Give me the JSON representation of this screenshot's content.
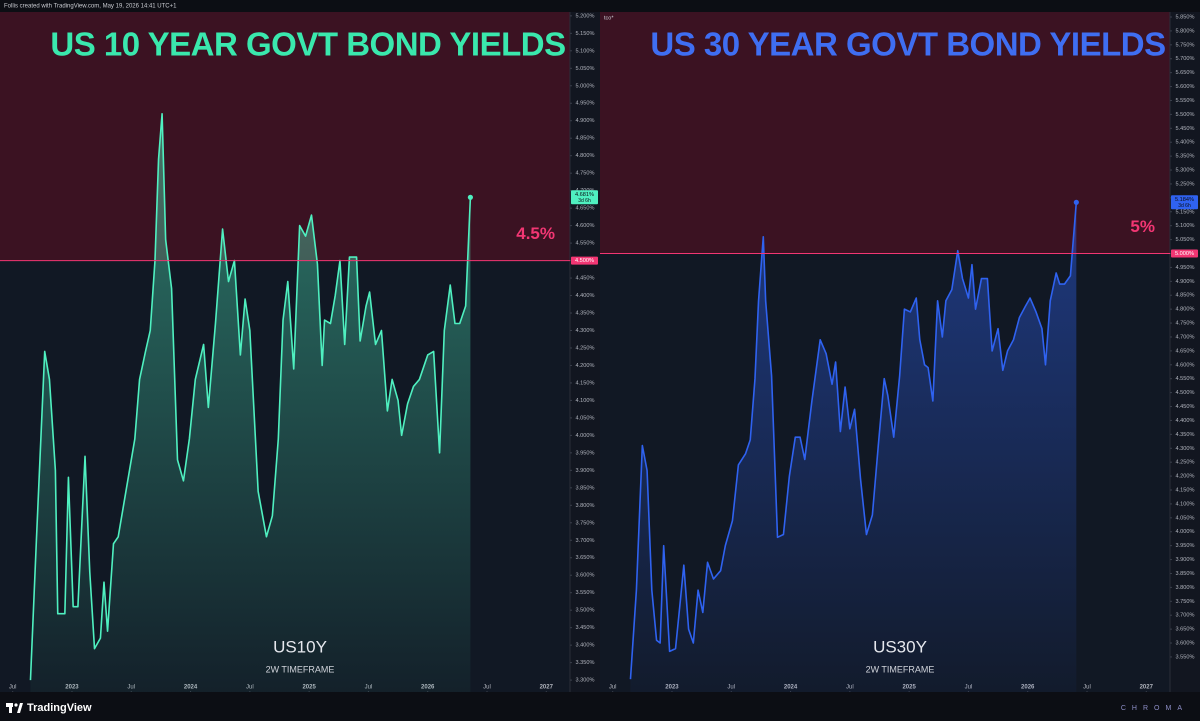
{
  "header": {
    "text": "Follis created with TradingView.com, May 19, 2026 14:41 UTC+1"
  },
  "footer": {
    "brand": "TradingView",
    "signature": "CHROMA"
  },
  "chart_data": [
    {
      "type": "line",
      "title": "US 10 YEAR GOVT BOND YIELDS",
      "title_color": "#3ae8ad",
      "annotation": "4.5%",
      "timeframe": "2W TIMEFRAME",
      "countdown": "3d 6h",
      "x": [
        2022.65,
        2022.7,
        2022.77,
        2022.81,
        2022.86,
        2022.88,
        2022.94,
        2022.97,
        2023.01,
        2023.05,
        2023.11,
        2023.15,
        2023.19,
        2023.24,
        2023.27,
        2023.3,
        2023.35,
        2023.39,
        2023.45,
        2023.53,
        2023.57,
        2023.62,
        2023.66,
        2023.7,
        2023.73,
        2023.76,
        2023.79,
        2023.84,
        2023.89,
        2023.94,
        2023.99,
        2024.04,
        2024.11,
        2024.15,
        2024.21,
        2024.27,
        2024.32,
        2024.37,
        2024.42,
        2024.46,
        2024.5,
        2024.57,
        2024.64,
        2024.69,
        2024.74,
        2024.78,
        2024.82,
        2024.87,
        2024.92,
        2024.97,
        2025.02,
        2025.07,
        2025.11,
        2025.13,
        2025.18,
        2025.22,
        2025.26,
        2025.3,
        2025.34,
        2025.4,
        2025.43,
        2025.48,
        2025.51,
        2025.56,
        2025.61,
        2025.66,
        2025.7,
        2025.75,
        2025.78,
        2025.83,
        2025.88,
        2025.93,
        2026.0,
        2026.05,
        2026.1,
        2026.14,
        2026.19,
        2026.23,
        2026.27,
        2026.32,
        2026.36
      ],
      "series": [
        {
          "name": "US10Y",
          "color": "#4ff0c0",
          "values": [
            3.3,
            3.7,
            4.24,
            4.16,
            3.9,
            3.49,
            3.49,
            3.88,
            3.51,
            3.51,
            3.94,
            3.61,
            3.39,
            3.42,
            3.58,
            3.44,
            3.69,
            3.71,
            3.83,
            3.99,
            4.16,
            4.24,
            4.3,
            4.5,
            4.79,
            4.92,
            4.56,
            4.42,
            3.93,
            3.87,
            3.99,
            4.16,
            4.26,
            4.08,
            4.32,
            4.59,
            4.44,
            4.5,
            4.23,
            4.39,
            4.3,
            3.84,
            3.71,
            3.77,
            3.99,
            4.33,
            4.44,
            4.19,
            4.6,
            4.57,
            4.63,
            4.49,
            4.2,
            4.33,
            4.32,
            4.4,
            4.5,
            4.26,
            4.51,
            4.51,
            4.27,
            4.37,
            4.41,
            4.26,
            4.3,
            4.07,
            4.16,
            4.1,
            4.0,
            4.09,
            4.14,
            4.16,
            4.23,
            4.24,
            3.95,
            4.3,
            4.43,
            4.32,
            4.32,
            4.37,
            4.681
          ]
        }
      ],
      "price_label": {
        "value": 4.681,
        "label": "4.681%"
      },
      "threshold": {
        "value": 4.5,
        "label": "4.500%",
        "color": "#f23673"
      },
      "xlim": [
        2022.393,
        2027.2
      ],
      "xticks": [
        {
          "value": 2022.5,
          "label": "Jul"
        },
        2023,
        {
          "value": 2023.5,
          "label": "Jul"
        },
        2024,
        {
          "value": 2024.5,
          "label": "Jul"
        },
        2025,
        {
          "value": 2025.5,
          "label": "Jul"
        },
        2026,
        {
          "value": 2026.5,
          "label": "Jul"
        },
        2027
      ],
      "ylim": [
        3.266,
        5.211
      ],
      "yticks": [
        {
          "value": 3.3,
          "label": "3.300%"
        },
        {
          "value": 3.35,
          "label": "3.350%"
        },
        {
          "value": 3.4,
          "label": "3.400%"
        },
        {
          "value": 3.45,
          "label": "3.450%"
        },
        {
          "value": 3.5,
          "label": "3.500%"
        },
        {
          "value": 3.55,
          "label": "3.550%"
        },
        {
          "value": 3.6,
          "label": "3.600%"
        },
        {
          "value": 3.65,
          "label": "3.650%"
        },
        {
          "value": 3.7,
          "label": "3.700%"
        },
        {
          "value": 3.75,
          "label": "3.750%"
        },
        {
          "value": 3.8,
          "label": "3.800%"
        },
        {
          "value": 3.85,
          "label": "3.850%"
        },
        {
          "value": 3.9,
          "label": "3.900%"
        },
        {
          "value": 3.95,
          "label": "3.950%"
        },
        {
          "value": 4.0,
          "label": "4.000%"
        },
        {
          "value": 4.05,
          "label": "4.050%"
        },
        {
          "value": 4.1,
          "label": "4.100%"
        },
        {
          "value": 4.15,
          "label": "4.150%"
        },
        {
          "value": 4.2,
          "label": "4.200%"
        },
        {
          "value": 4.25,
          "label": "4.250%"
        },
        {
          "value": 4.3,
          "label": "4.300%"
        },
        {
          "value": 4.35,
          "label": "4.350%"
        },
        {
          "value": 4.4,
          "label": "4.400%"
        },
        {
          "value": 4.45,
          "label": "4.450%"
        },
        {
          "value": 4.5,
          "label": "4.500%"
        },
        {
          "value": 4.55,
          "label": "4.550%"
        },
        {
          "value": 4.6,
          "label": "4.600%"
        },
        {
          "value": 4.65,
          "label": "4.650%"
        },
        {
          "value": 4.7,
          "label": "4.700%"
        },
        {
          "value": 4.75,
          "label": "4.750%"
        },
        {
          "value": 4.8,
          "label": "4.800%"
        },
        {
          "value": 4.85,
          "label": "4.850%"
        },
        {
          "value": 4.9,
          "label": "4.900%"
        },
        {
          "value": 4.95,
          "label": "4.950%"
        },
        {
          "value": 5.0,
          "label": "5.000%"
        },
        {
          "value": 5.05,
          "label": "5.050%"
        },
        {
          "value": 5.1,
          "label": "5.100%"
        },
        {
          "value": 5.15,
          "label": "5.150%"
        },
        {
          "value": 5.2,
          "label": "5.200%"
        }
      ]
    },
    {
      "type": "line",
      "title": "US 30 YEAR GOVT BOND YIELDS",
      "title_color": "#3f6ef2",
      "annotation": "5%",
      "timeframe": "2W TIMEFRAME",
      "countdown": "3d 6h",
      "tag": "tco*",
      "x": [
        2022.65,
        2022.7,
        2022.75,
        2022.79,
        2022.83,
        2022.87,
        2022.9,
        2022.93,
        2022.98,
        2023.03,
        2023.07,
        2023.1,
        2023.14,
        2023.18,
        2023.22,
        2023.26,
        2023.3,
        2023.35,
        2023.41,
        2023.45,
        2023.51,
        2023.56,
        2023.62,
        2023.66,
        2023.7,
        2023.73,
        2023.77,
        2023.79,
        2023.84,
        2023.89,
        2023.94,
        2023.99,
        2024.04,
        2024.08,
        2024.12,
        2024.18,
        2024.25,
        2024.3,
        2024.35,
        2024.38,
        2024.42,
        2024.46,
        2024.5,
        2024.54,
        2024.59,
        2024.64,
        2024.69,
        2024.74,
        2024.79,
        2024.82,
        2024.87,
        2024.92,
        2024.96,
        2025.01,
        2025.06,
        2025.09,
        2025.13,
        2025.16,
        2025.2,
        2025.24,
        2025.28,
        2025.31,
        2025.36,
        2025.41,
        2025.45,
        2025.5,
        2025.53,
        2025.56,
        2025.61,
        2025.66,
        2025.7,
        2025.75,
        2025.79,
        2025.83,
        2025.88,
        2025.93,
        2025.98,
        2026.02,
        2026.07,
        2026.12,
        2026.15,
        2026.19,
        2026.24,
        2026.27,
        2026.31,
        2026.36,
        2026.41
      ],
      "series": [
        {
          "name": "US30Y",
          "color": "#2f62f0",
          "values": [
            3.47,
            3.79,
            4.31,
            4.22,
            3.79,
            3.61,
            3.6,
            3.95,
            3.57,
            3.58,
            3.75,
            3.88,
            3.65,
            3.6,
            3.79,
            3.71,
            3.89,
            3.83,
            3.86,
            3.95,
            4.04,
            4.24,
            4.28,
            4.33,
            4.55,
            4.83,
            5.06,
            4.83,
            4.56,
            3.98,
            3.99,
            4.2,
            4.34,
            4.34,
            4.26,
            4.47,
            4.69,
            4.64,
            4.53,
            4.61,
            4.36,
            4.52,
            4.37,
            4.44,
            4.19,
            3.99,
            4.06,
            4.31,
            4.55,
            4.49,
            4.34,
            4.56,
            4.8,
            4.79,
            4.84,
            4.69,
            4.6,
            4.59,
            4.47,
            4.83,
            4.7,
            4.83,
            4.87,
            5.01,
            4.91,
            4.84,
            4.96,
            4.8,
            4.91,
            4.91,
            4.65,
            4.73,
            4.58,
            4.65,
            4.69,
            4.77,
            4.81,
            4.84,
            4.79,
            4.73,
            4.6,
            4.83,
            4.93,
            4.89,
            4.89,
            4.92,
            5.184
          ]
        }
      ],
      "price_label": {
        "value": 5.184,
        "label": "5.184%"
      },
      "threshold": {
        "value": 5.0,
        "label": "5.000%",
        "color": "#f23673"
      },
      "xlim": [
        2022.393,
        2027.2
      ],
      "xticks": [
        {
          "value": 2022.5,
          "label": "Jul"
        },
        2023,
        {
          "value": 2023.5,
          "label": "Jul"
        },
        2024,
        {
          "value": 2024.5,
          "label": "Jul"
        },
        2025,
        {
          "value": 2025.5,
          "label": "Jul"
        },
        2026,
        {
          "value": 2026.5,
          "label": "Jul"
        },
        2027
      ],
      "ylim": [
        3.424,
        5.868
      ],
      "yticks": [
        {
          "value": 3.55,
          "label": "3.550%"
        },
        {
          "value": 3.6,
          "label": "3.600%"
        },
        {
          "value": 3.65,
          "label": "3.650%"
        },
        {
          "value": 3.7,
          "label": "3.700%"
        },
        {
          "value": 3.75,
          "label": "3.750%"
        },
        {
          "value": 3.8,
          "label": "3.800%"
        },
        {
          "value": 3.85,
          "label": "3.850%"
        },
        {
          "value": 3.9,
          "label": "3.900%"
        },
        {
          "value": 3.95,
          "label": "3.950%"
        },
        {
          "value": 4.0,
          "label": "4.000%"
        },
        {
          "value": 4.05,
          "label": "4.050%"
        },
        {
          "value": 4.1,
          "label": "4.100%"
        },
        {
          "value": 4.15,
          "label": "4.150%"
        },
        {
          "value": 4.2,
          "label": "4.200%"
        },
        {
          "value": 4.25,
          "label": "4.250%"
        },
        {
          "value": 4.3,
          "label": "4.300%"
        },
        {
          "value": 4.35,
          "label": "4.350%"
        },
        {
          "value": 4.4,
          "label": "4.400%"
        },
        {
          "value": 4.45,
          "label": "4.450%"
        },
        {
          "value": 4.5,
          "label": "4.500%"
        },
        {
          "value": 4.55,
          "label": "4.550%"
        },
        {
          "value": 4.6,
          "label": "4.600%"
        },
        {
          "value": 4.65,
          "label": "4.650%"
        },
        {
          "value": 4.7,
          "label": "4.700%"
        },
        {
          "value": 4.75,
          "label": "4.750%"
        },
        {
          "value": 4.8,
          "label": "4.800%"
        },
        {
          "value": 4.85,
          "label": "4.850%"
        },
        {
          "value": 4.9,
          "label": "4.900%"
        },
        {
          "value": 4.95,
          "label": "4.950%"
        },
        {
          "value": 5.0,
          "label": "5.000%"
        },
        {
          "value": 5.05,
          "label": "5.050%"
        },
        {
          "value": 5.1,
          "label": "5.100%"
        },
        {
          "value": 5.15,
          "label": "5.150%"
        },
        {
          "value": 5.2,
          "label": "5.200%"
        },
        {
          "value": 5.25,
          "label": "5.250%"
        },
        {
          "value": 5.3,
          "label": "5.300%"
        },
        {
          "value": 5.35,
          "label": "5.350%"
        },
        {
          "value": 5.4,
          "label": "5.400%"
        },
        {
          "value": 5.45,
          "label": "5.450%"
        },
        {
          "value": 5.5,
          "label": "5.500%"
        },
        {
          "value": 5.55,
          "label": "5.550%"
        },
        {
          "value": 5.6,
          "label": "5.600%"
        },
        {
          "value": 5.65,
          "label": "5.650%"
        },
        {
          "value": 5.7,
          "label": "5.700%"
        },
        {
          "value": 5.75,
          "label": "5.750%"
        },
        {
          "value": 5.8,
          "label": "5.800%"
        },
        {
          "value": 5.85,
          "label": "5.850%"
        }
      ]
    }
  ]
}
